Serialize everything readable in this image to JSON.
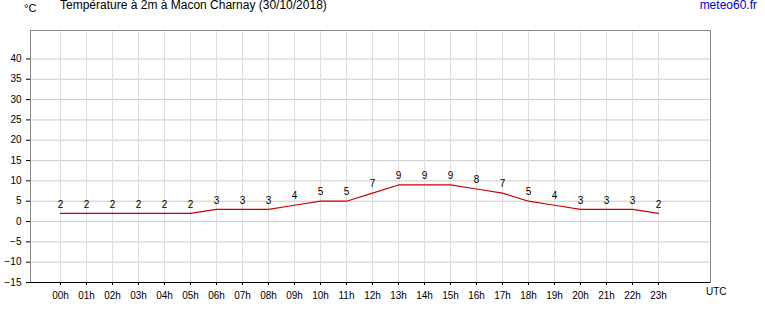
{
  "chart_data": {
    "type": "line",
    "title": "Température à 2m à Macon Charnay (30/10/2018)",
    "source": "meteo60.fr",
    "y_label": "°C",
    "x_label": "UTC",
    "categories": [
      "00h",
      "01h",
      "02h",
      "03h",
      "04h",
      "05h",
      "06h",
      "07h",
      "08h",
      "09h",
      "10h",
      "11h",
      "12h",
      "13h",
      "14h",
      "15h",
      "16h",
      "17h",
      "18h",
      "19h",
      "20h",
      "21h",
      "22h",
      "23h"
    ],
    "values": [
      2,
      2,
      2,
      2,
      2,
      2,
      3,
      3,
      3,
      4,
      5,
      5,
      7,
      9,
      9,
      9,
      8,
      7,
      5,
      4,
      3,
      3,
      3,
      2
    ],
    "color": "#cc0000",
    "ylim": [
      -15,
      47
    ],
    "yticks": [
      -15,
      -10,
      -5,
      0,
      5,
      10,
      15,
      20,
      25,
      30,
      35,
      40
    ],
    "grid": true,
    "data_labels": true
  }
}
